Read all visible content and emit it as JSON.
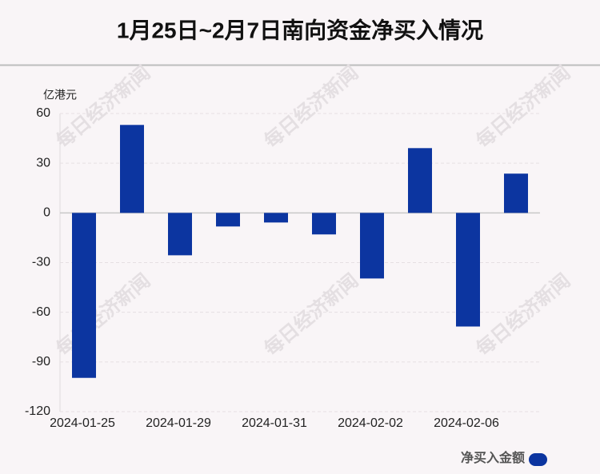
{
  "chart_data": {
    "type": "bar",
    "title": "1月25日~2月7日南向资金净买入情况",
    "y_label": "亿港元",
    "categories": [
      "2024-01-25",
      null,
      "2024-01-29",
      null,
      "2024-01-31",
      null,
      "2024-02-02",
      null,
      "2024-02-06",
      null
    ],
    "series": [
      {
        "name": "净买入金额",
        "color": "#0c35a0",
        "values": [
          -99.6,
          53.1,
          -25.6,
          -8.2,
          -5.8,
          -13.0,
          -39.6,
          39.1,
          -68.6,
          23.7
        ]
      }
    ],
    "ylim": [
      -120,
      60
    ],
    "yticks": [
      -120,
      -90,
      -60,
      -30,
      0,
      30,
      60
    ],
    "grid": true,
    "legend": "bottom-right",
    "watermark": "每日经济新闻"
  }
}
